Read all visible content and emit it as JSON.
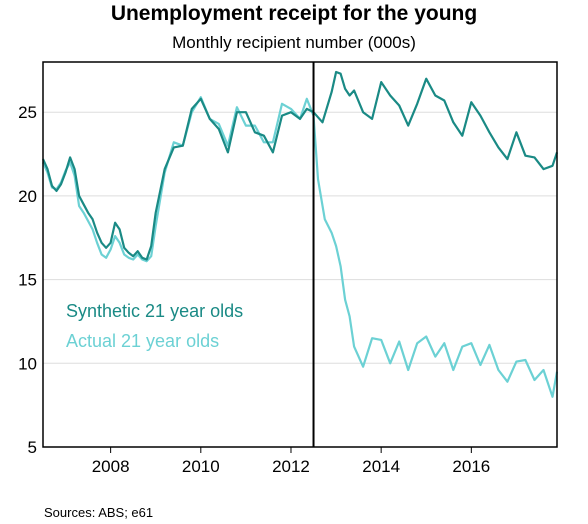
{
  "header": {
    "title": "Unemployment receipt for the young",
    "subtitle": "Monthly recipient number (000s)"
  },
  "footer": {
    "source": "Sources: ABS; e61"
  },
  "colors": {
    "synthetic": "#1a8a85",
    "actual": "#6cd1d4",
    "grid": "#dddddd",
    "axis": "#000000"
  },
  "chart_data": {
    "type": "line",
    "title": "Unemployment receipt for the young",
    "subtitle": "Monthly recipient number (000s)",
    "xlim": [
      2006.5,
      2017.9
    ],
    "ylim": [
      5,
      28
    ],
    "yticks": [
      5,
      10,
      15,
      20,
      25
    ],
    "xticks": [
      2008,
      2010,
      2012,
      2014,
      2016
    ],
    "grid": true,
    "vline": 2012.5,
    "legend_position": "left-middle",
    "series": [
      {
        "name": "Synthetic 21 year olds",
        "color": "#1a8a85",
        "x": [
          2006.5,
          2006.6,
          2006.7,
          2006.8,
          2006.9,
          2007.0,
          2007.1,
          2007.2,
          2007.3,
          2007.4,
          2007.5,
          2007.6,
          2007.7,
          2007.8,
          2007.9,
          2008.0,
          2008.1,
          2008.2,
          2008.3,
          2008.4,
          2008.5,
          2008.6,
          2008.7,
          2008.8,
          2008.9,
          2009.0,
          2009.2,
          2009.4,
          2009.6,
          2009.8,
          2010.0,
          2010.2,
          2010.4,
          2010.6,
          2010.8,
          2011.0,
          2011.2,
          2011.4,
          2011.6,
          2011.8,
          2012.0,
          2012.2,
          2012.35,
          2012.5,
          2012.7,
          2012.9,
          2013.0,
          2013.1,
          2013.2,
          2013.3,
          2013.4,
          2013.6,
          2013.8,
          2014.0,
          2014.2,
          2014.4,
          2014.6,
          2014.8,
          2015.0,
          2015.2,
          2015.4,
          2015.6,
          2015.8,
          2016.0,
          2016.2,
          2016.4,
          2016.6,
          2016.8,
          2017.0,
          2017.2,
          2017.4,
          2017.6,
          2017.8,
          2017.9
        ],
        "y": [
          22.2,
          21.6,
          20.6,
          20.3,
          20.7,
          21.4,
          22.3,
          21.6,
          20.0,
          19.5,
          19.0,
          18.6,
          17.8,
          17.2,
          16.9,
          17.2,
          18.4,
          18.0,
          16.9,
          16.6,
          16.4,
          16.7,
          16.3,
          16.2,
          17.0,
          19.0,
          21.6,
          22.9,
          23.0,
          25.2,
          25.8,
          24.6,
          24.0,
          22.6,
          25.0,
          25.0,
          23.8,
          23.6,
          22.6,
          24.8,
          25.0,
          24.6,
          25.2,
          25.0,
          24.4,
          26.2,
          27.4,
          27.3,
          26.4,
          26.0,
          26.3,
          25.0,
          24.6,
          26.8,
          26.0,
          25.4,
          24.2,
          25.5,
          27.0,
          26.0,
          25.7,
          24.4,
          23.6,
          25.6,
          24.8,
          23.8,
          22.9,
          22.2,
          23.8,
          22.4,
          22.3,
          21.6,
          21.8,
          22.6
        ]
      },
      {
        "name": "Actual 21 year olds",
        "color": "#6cd1d4",
        "x": [
          2006.5,
          2006.6,
          2006.7,
          2006.8,
          2006.9,
          2007.0,
          2007.1,
          2007.2,
          2007.3,
          2007.4,
          2007.5,
          2007.6,
          2007.7,
          2007.8,
          2007.9,
          2008.0,
          2008.1,
          2008.2,
          2008.3,
          2008.4,
          2008.5,
          2008.6,
          2008.7,
          2008.8,
          2008.9,
          2009.0,
          2009.2,
          2009.4,
          2009.6,
          2009.8,
          2010.0,
          2010.2,
          2010.4,
          2010.6,
          2010.8,
          2011.0,
          2011.2,
          2011.4,
          2011.6,
          2011.8,
          2012.0,
          2012.2,
          2012.35,
          2012.5,
          2012.6,
          2012.75,
          2012.9,
          2013.0,
          2013.1,
          2013.2,
          2013.3,
          2013.4,
          2013.6,
          2013.8,
          2014.0,
          2014.2,
          2014.4,
          2014.6,
          2014.8,
          2015.0,
          2015.2,
          2015.4,
          2015.6,
          2015.8,
          2016.0,
          2016.2,
          2016.4,
          2016.6,
          2016.8,
          2017.0,
          2017.2,
          2017.4,
          2017.6,
          2017.8,
          2017.9
        ],
        "y": [
          22.0,
          21.4,
          20.5,
          20.4,
          20.8,
          21.5,
          22.0,
          21.2,
          19.4,
          19.0,
          18.5,
          18.0,
          17.2,
          16.5,
          16.3,
          16.8,
          17.6,
          17.2,
          16.5,
          16.3,
          16.2,
          16.5,
          16.2,
          16.1,
          16.4,
          18.2,
          21.4,
          23.2,
          23.0,
          25.0,
          25.9,
          24.6,
          24.3,
          23.0,
          25.3,
          24.2,
          24.2,
          23.2,
          23.2,
          25.5,
          25.2,
          24.6,
          25.8,
          24.8,
          21.0,
          18.6,
          17.8,
          17.0,
          15.8,
          13.8,
          12.8,
          11.0,
          9.8,
          11.5,
          11.4,
          10.0,
          11.3,
          9.6,
          11.2,
          11.6,
          10.4,
          11.2,
          9.6,
          11.0,
          11.2,
          9.9,
          11.1,
          9.6,
          8.9,
          10.1,
          10.2,
          9.0,
          9.6,
          8.0,
          9.5
        ]
      }
    ]
  }
}
